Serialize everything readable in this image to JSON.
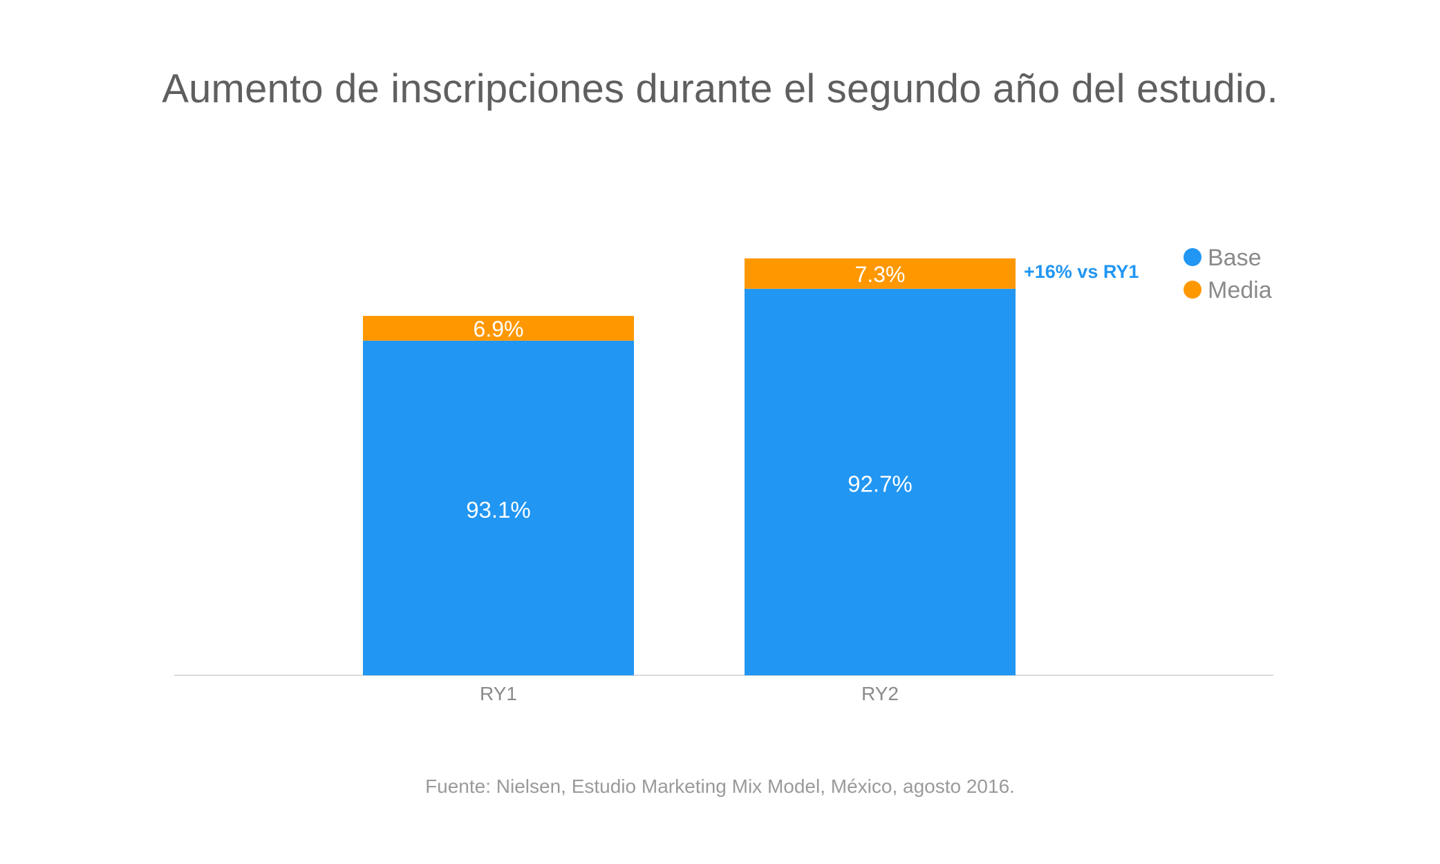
{
  "title": "Aumento de inscripciones durante el segundo año del estudio.",
  "source": "Fuente: Nielsen, Estudio Marketing Mix Model, México, agosto 2016.",
  "colors": {
    "base": "#2196F3",
    "media": "#FF9800",
    "axis": "#d9d9d9",
    "tick_text": "#8a8a8a",
    "legend_text": "#8a8a8a",
    "annotation": "#2196F3",
    "bar_label": "#ffffff"
  },
  "chart_data": {
    "type": "bar",
    "stacked": true,
    "categories": [
      "RY1",
      "RY2"
    ],
    "series": [
      {
        "name": "Base",
        "values": [
          93.1,
          92.7
        ],
        "labels": [
          "93.1%",
          "92.7%"
        ]
      },
      {
        "name": "Media",
        "values": [
          6.9,
          7.3
        ],
        "labels": [
          "6.9%",
          "7.3%"
        ]
      }
    ],
    "totals_relative": [
      100,
      116
    ],
    "annotation": {
      "category": "RY2",
      "text": "+16% vs RY1"
    },
    "legend": {
      "position": "top-right"
    },
    "grid": false,
    "xlabel": "",
    "ylabel": ""
  }
}
